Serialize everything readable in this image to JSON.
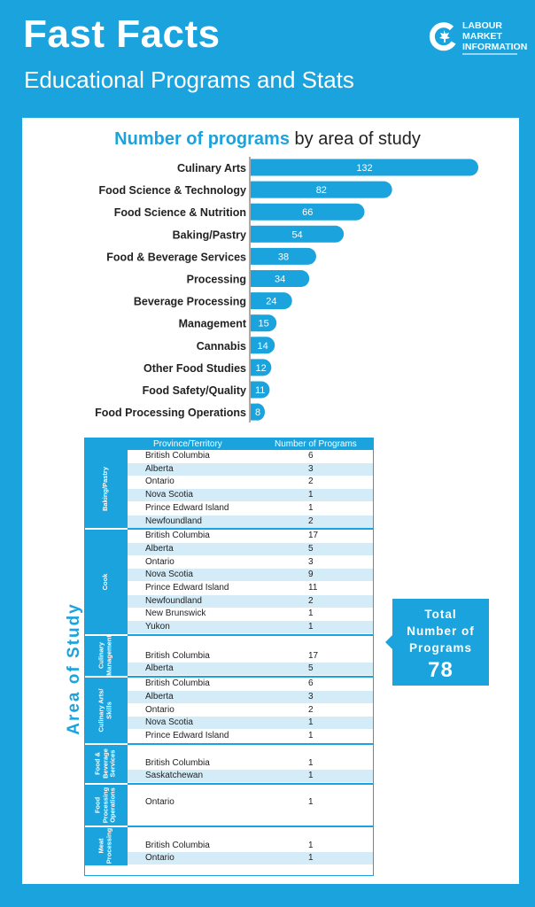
{
  "header": {
    "title": "Fast Facts",
    "subtitle": "Educational Programs and Stats",
    "logo_lines": [
      "LABOUR",
      "MARKET",
      "INFORMATION"
    ]
  },
  "colors": {
    "accent": "#1aa3dd",
    "alt_row": "#d4ecf8",
    "background": "#1aa3dd"
  },
  "chart_title": {
    "highlight": "Number of programs",
    "rest": " by area of study"
  },
  "chart_data": {
    "type": "bar",
    "orientation": "horizontal",
    "title": "Number of programs by area of study",
    "categories": [
      "Culinary Arts",
      "Food Science & Technology",
      "Food Science & Nutrition",
      "Baking/Pastry",
      "Food & Beverage Services",
      "Processing",
      "Beverage Processing",
      "Management",
      "Cannabis",
      "Other Food Studies",
      "Food Safety/Quality",
      "Food Processing Operations"
    ],
    "values": [
      132,
      82,
      66,
      54,
      38,
      34,
      24,
      15,
      14,
      12,
      11,
      8
    ],
    "xlim": [
      0,
      132
    ],
    "data_labels": true,
    "grid": false
  },
  "table": {
    "headers": {
      "province": "Province/Territory",
      "programs": "Number of Programs"
    },
    "side_label": "Area of Study",
    "groups": [
      {
        "label": [
          "Baking/Pastry"
        ],
        "rows": [
          [
            "British Columbia",
            "6"
          ],
          [
            "Alberta",
            "3"
          ],
          [
            "Ontario",
            "2"
          ],
          [
            "Nova Scotia",
            "1"
          ],
          [
            "Prince Edward Island",
            "1"
          ],
          [
            "Newfoundland",
            "2"
          ]
        ]
      },
      {
        "label": [
          "Cook"
        ],
        "rows": [
          [
            "British Columbia",
            "17"
          ],
          [
            "Alberta",
            "5"
          ],
          [
            "Ontario",
            "3"
          ],
          [
            "Nova Scotia",
            "9"
          ],
          [
            "Prince Edward Island",
            "11"
          ],
          [
            "Newfoundland",
            "2"
          ],
          [
            "New Brunswick",
            "1"
          ],
          [
            "Yukon",
            "1"
          ]
        ]
      },
      {
        "label": [
          "Culinary",
          "Management"
        ],
        "rows": [
          [
            "British Columbia",
            "17"
          ],
          [
            "Alberta",
            "5"
          ]
        ]
      },
      {
        "label": [
          "Culinary Arts/",
          "Skills"
        ],
        "rows": [
          [
            "British Columbia",
            "6"
          ],
          [
            "Alberta",
            "3"
          ],
          [
            "Ontario",
            "2"
          ],
          [
            "Nova Scotia",
            "1"
          ],
          [
            "Prince Edward Island",
            "1"
          ]
        ]
      },
      {
        "label": [
          "Food &",
          "Beverage",
          "Services"
        ],
        "rows": [
          [
            "British Columbia",
            "1"
          ],
          [
            "Saskatchewan",
            "1"
          ]
        ]
      },
      {
        "label": [
          "Food",
          "Processing",
          "Operations"
        ],
        "rows": [
          [
            "Ontario",
            "1"
          ]
        ]
      },
      {
        "label": [
          "Meat",
          "Processing"
        ],
        "rows": [
          [
            "British Columbia",
            "1"
          ],
          [
            "Ontario",
            "1"
          ]
        ]
      }
    ]
  },
  "total": {
    "lines": [
      "Total",
      "Number of",
      "Programs"
    ],
    "value": "78"
  }
}
